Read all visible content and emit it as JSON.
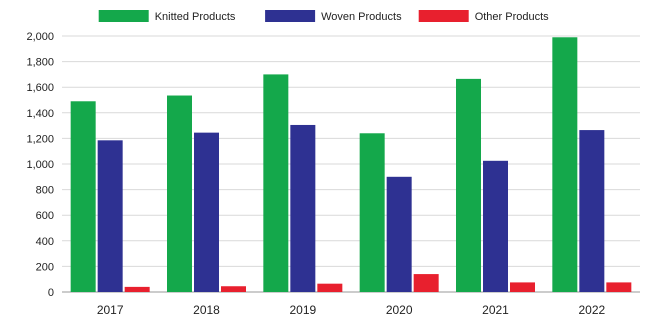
{
  "chart_data": {
    "type": "bar",
    "categories": [
      "2017",
      "2018",
      "2019",
      "2020",
      "2021",
      "2022"
    ],
    "series": [
      {
        "name": "Knitted Products",
        "color": "#14a84b",
        "values": [
          1490,
          1535,
          1700,
          1240,
          1665,
          1990
        ]
      },
      {
        "name": "Woven Products",
        "color": "#2e3192",
        "values": [
          1185,
          1245,
          1305,
          900,
          1025,
          1265
        ]
      },
      {
        "name": "Other Products",
        "color": "#e8202e",
        "values": [
          40,
          45,
          65,
          140,
          75,
          75
        ]
      }
    ],
    "yticks": [
      "0",
      "200",
      "400",
      "600",
      "800",
      "1,000",
      "1,200",
      "1,400",
      "1,600",
      "1,800",
      "2,000"
    ],
    "ylim": [
      0,
      2000
    ],
    "grid": true,
    "legend_position": "top-center",
    "title": "",
    "xlabel": "",
    "ylabel": ""
  }
}
